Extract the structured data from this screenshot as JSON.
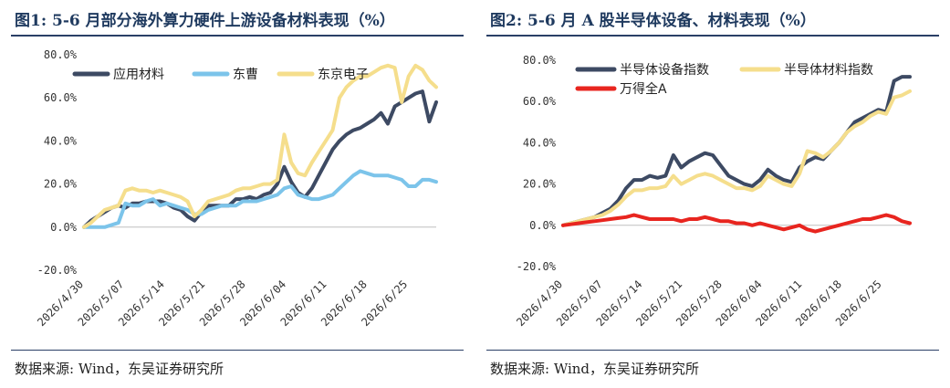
{
  "panels": [
    {
      "title": "图1:  5-6 月部分海外算力硬件上游设备材料表现（%）",
      "source": "数据来源:  Wind，东吴证券研究所",
      "chart_data": {
        "type": "line",
        "title": "图1:  5-6 月部分海外算力硬件上游设备材料表现（%）",
        "xlabel": "",
        "ylabel": "",
        "x_ticks": [
          "2026/4/30",
          "2026/5/07",
          "2026/5/14",
          "2026/5/21",
          "2026/5/28",
          "2026/6/04",
          "2026/6/11",
          "2026/6/18",
          "2026/6/25"
        ],
        "y_ticks": [
          "-20.0%",
          "0.0%",
          "20.0%",
          "40.0%",
          "60.0%",
          "80.0%"
        ],
        "ylim": [
          -20,
          80
        ],
        "grid": false,
        "legend_position": "top",
        "series": [
          {
            "name": "应用材料",
            "color": "#3d4a63",
            "values": [
              0,
              3,
              5,
              7,
              9,
              10,
              9,
              11,
              11,
              12,
              12,
              12,
              11,
              9,
              8,
              5,
              3,
              7,
              10,
              10,
              10,
              10,
              13,
              13,
              14,
              13,
              15,
              16,
              20,
              28,
              21,
              16,
              14,
              18,
              24,
              30,
              36,
              40,
              43,
              45,
              46,
              48,
              50,
              53,
              48,
              56,
              58,
              60,
              62,
              63,
              49,
              58
            ]
          },
          {
            "name": "东曹",
            "color": "#7cc4ea",
            "values": [
              0,
              0,
              0,
              0,
              1,
              2,
              11,
              10,
              10,
              12,
              13,
              10,
              11,
              10,
              9,
              8,
              6,
              6,
              8,
              9,
              10,
              10,
              10,
              12,
              12,
              12,
              13,
              14,
              15,
              18,
              19,
              15,
              14,
              13,
              13,
              14,
              15,
              18,
              21,
              24,
              26,
              25,
              24,
              24,
              24,
              23,
              22,
              19,
              19,
              22,
              22,
              21
            ]
          },
          {
            "name": "东京电子",
            "color": "#f5de8c",
            "values": [
              0,
              2,
              5,
              8,
              9,
              10,
              17,
              18,
              17,
              17,
              16,
              17,
              16,
              15,
              14,
              12,
              5,
              8,
              12,
              13,
              14,
              15,
              17,
              18,
              18,
              19,
              20,
              20,
              22,
              43,
              30,
              25,
              24,
              30,
              35,
              40,
              45,
              60,
              65,
              68,
              70,
              70,
              72,
              74,
              75,
              74,
              58,
              70,
              75,
              73,
              68,
              65
            ]
          }
        ]
      }
    },
    {
      "title": "图2:  5-6 月 A 股半导体设备、材料表现（%）",
      "source": "数据来源:  Wind，东吴证券研究所",
      "chart_data": {
        "type": "line",
        "title": "图2:  5-6 月 A 股半导体设备、材料表现（%）",
        "xlabel": "",
        "ylabel": "",
        "x_ticks": [
          "2026/4/30",
          "2026/5/07",
          "2026/5/14",
          "2026/5/21",
          "2026/5/28",
          "2026/6/04",
          "2026/6/11",
          "2026/6/18",
          "2026/6/25"
        ],
        "y_ticks": [
          "-20.0%",
          "0.0%",
          "20.0%",
          "40.0%",
          "60.0%",
          "80.0%"
        ],
        "ylim": [
          -20,
          80
        ],
        "grid": false,
        "legend_position": "top-left",
        "series": [
          {
            "name": "半导体设备指数",
            "color": "#3d4a63",
            "values": [
              0,
              1,
              2,
              3,
              4,
              6,
              8,
              12,
              18,
              22,
              22,
              24,
              23,
              24,
              34,
              28,
              31,
              33,
              35,
              34,
              29,
              24,
              22,
              20,
              19,
              22,
              27,
              24,
              22,
              21,
              28,
              31,
              33,
              32,
              36,
              40,
              45,
              50,
              52,
              54,
              56,
              55,
              70,
              72,
              72
            ]
          },
          {
            "name": "半导体材料指数",
            "color": "#f5de8c",
            "values": [
              0,
              1,
              2,
              3,
              4,
              5,
              7,
              10,
              14,
              17,
              17,
              18,
              18,
              19,
              24,
              20,
              22,
              24,
              25,
              24,
              22,
              20,
              18,
              18,
              17,
              19,
              24,
              22,
              20,
              19,
              25,
              36,
              35,
              33,
              36,
              40,
              45,
              48,
              50,
              53,
              55,
              54,
              62,
              63,
              65
            ]
          },
          {
            "name": "万得全A",
            "color": "#e8251f",
            "values": [
              0,
              0.5,
              1,
              1.5,
              2,
              2.5,
              3,
              3.5,
              4,
              5,
              4,
              3,
              3,
              3,
              3,
              2,
              3,
              3,
              4,
              3,
              2,
              2,
              1,
              1,
              0,
              1,
              0,
              -1,
              -2,
              -1,
              0,
              -2,
              -3,
              -2,
              -1,
              0,
              1,
              2,
              3,
              3,
              4,
              5,
              4,
              2,
              1
            ]
          }
        ]
      }
    }
  ]
}
